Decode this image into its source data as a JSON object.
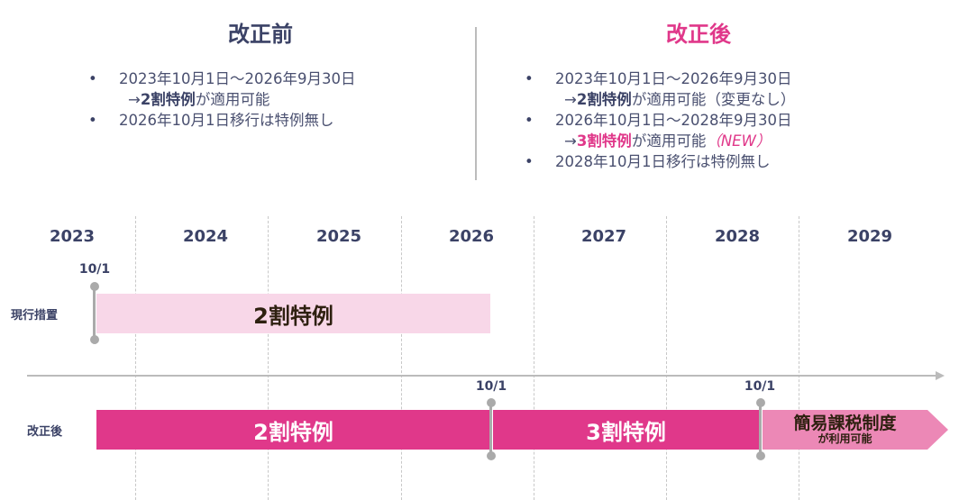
{
  "before": {
    "title": "改正前",
    "items": [
      {
        "line1": "2023年10月1日～2026年9月30日",
        "arrow": "→",
        "bold": "2割特例",
        "rest": "が適用可能"
      },
      {
        "line1": "2026年10月1日移行は特例無し"
      }
    ]
  },
  "after": {
    "title": "改正後",
    "items": [
      {
        "line1": "2023年10月1日～2026年9月30日",
        "arrow": "→",
        "bold": "2割特例",
        "rest": "が適用可能（変更なし）"
      },
      {
        "line1": "2026年10月1日～2028年9月30日",
        "arrow": "→",
        "bold": "3割特例",
        "rest": "が適用可能",
        "tag": "（NEW）"
      },
      {
        "line1": "2028年10月1日移行は特例無し"
      }
    ]
  },
  "timeline": {
    "years": [
      "2023",
      "2024",
      "2025",
      "2026",
      "2027",
      "2028",
      "2029"
    ],
    "rows": {
      "current": "現行措置",
      "revised": "改正後"
    },
    "date_label": "10/1",
    "bars": {
      "current_2wari": "2割特例",
      "revised_2wari": "2割特例",
      "revised_3wari": "3割特例",
      "simplified_title": "簡易課税制度",
      "simplified_sub": "が利用可能"
    }
  },
  "colors": {
    "navy": "#3b4266",
    "pink": "#e0388a",
    "light_pink": "#f8d7e8",
    "arrow_pink": "#ec88b6"
  }
}
